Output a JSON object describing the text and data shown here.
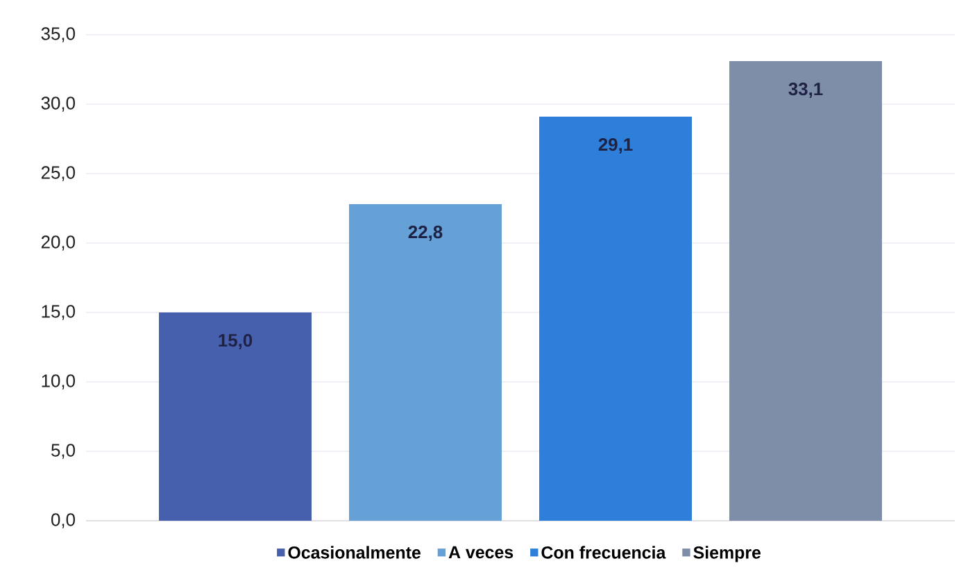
{
  "chart_data": {
    "type": "bar",
    "categories": [
      null
    ],
    "series": [
      {
        "name": "Ocasionalmente",
        "color": "#4760ad",
        "values": [
          15.0
        ],
        "value_labels": [
          "15,0"
        ]
      },
      {
        "name": "A veces",
        "color": "#65a0d6",
        "values": [
          22.8
        ],
        "value_labels": [
          "22,8"
        ]
      },
      {
        "name": "Con frecuencia",
        "color": "#2d7fd9",
        "values": [
          29.1
        ],
        "value_labels": [
          "29,1"
        ]
      },
      {
        "name": "Siempre",
        "color": "#7f8ea8",
        "values": [
          33.1
        ],
        "value_labels": [
          "33,1"
        ]
      }
    ],
    "ylim": [
      0,
      35
    ],
    "yticks": [
      {
        "value": 0,
        "label": "0,0"
      },
      {
        "value": 5,
        "label": "5,0"
      },
      {
        "value": 10,
        "label": "10,0"
      },
      {
        "value": 15,
        "label": "15,0"
      },
      {
        "value": 20,
        "label": "20,0"
      },
      {
        "value": 25,
        "label": "25,0"
      },
      {
        "value": 30,
        "label": "30,0"
      },
      {
        "value": 35,
        "label": "35,0"
      }
    ],
    "grid": "y",
    "legend": "bottom"
  }
}
